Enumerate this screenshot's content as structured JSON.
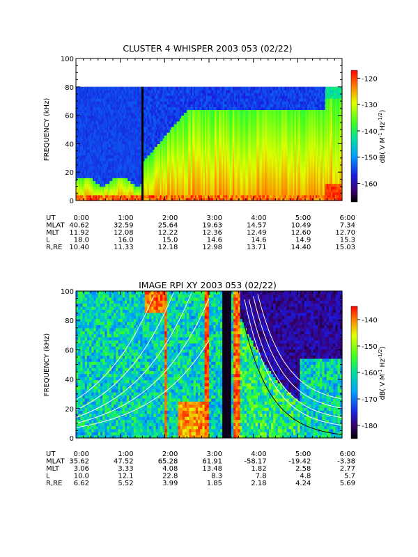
{
  "chart_data": [
    {
      "type": "heatmap",
      "title": "CLUSTER 4 WHISPER 2003 053 (02/22)",
      "ylabel": "FREQUENCY (kHz)",
      "ylim": [
        0,
        100
      ],
      "yticks": [
        "0",
        "20",
        "40",
        "60",
        "80",
        "100"
      ],
      "data_max_freq": 80,
      "colorbar": {
        "label_main": "dB( V M",
        "label_sup1": "-1",
        "label_mid": " Hz",
        "label_sup2": "-1/2",
        "label_end": ")",
        "ticks": [
          "-120",
          "-130",
          "-140",
          "-150",
          "-160"
        ],
        "range": [
          -167,
          -117
        ]
      },
      "xticks": [
        "0:00",
        "1:00",
        "2:00",
        "3:00",
        "4:00",
        "5:00",
        "6:00"
      ],
      "ephemeris": [
        {
          "label": "UT",
          "values": [
            "0:00",
            "1:00",
            "2:00",
            "3:00",
            "4:00",
            "5:00",
            "6:00"
          ]
        },
        {
          "label": "MLAT",
          "values": [
            "40.62",
            "32.59",
            "25.64",
            "19.63",
            "14.57",
            "10.49",
            "7.34"
          ]
        },
        {
          "label": "MLT",
          "values": [
            "11.92",
            "12.08",
            "12.22",
            "12.36",
            "12.49",
            "12.60",
            "12.70"
          ]
        },
        {
          "label": "L",
          "values": [
            "18.0",
            "16.0",
            "15.0",
            "14.6",
            "14.6",
            "14.9",
            "15.3"
          ]
        },
        {
          "label": "R,RE",
          "values": [
            "10.40",
            "11.33",
            "12.18",
            "12.98",
            "13.71",
            "14.40",
            "15.03"
          ]
        }
      ],
      "markers_ut_hours": [
        1.5
      ]
    },
    {
      "type": "heatmap",
      "title": "IMAGE RPI XY 2003 053 (02/22)",
      "ylabel": "FREQUENCY (kHz)",
      "ylim": [
        0,
        100
      ],
      "yticks": [
        "0",
        "20",
        "40",
        "60",
        "80",
        "100"
      ],
      "colorbar": {
        "label_main": "dB( V M",
        "label_sup1": "-1",
        "label_mid": " Hz",
        "label_sup2": "-1/2",
        "label_end": ")",
        "ticks": [
          "-140",
          "-150",
          "-160",
          "-170",
          "-180"
        ],
        "range": [
          -185,
          -135
        ]
      },
      "xticks": [
        "0:00",
        "1:00",
        "2:00",
        "3:00",
        "4:00",
        "5:00",
        "6:00"
      ],
      "ephemeris": [
        {
          "label": "UT",
          "values": [
            "0:00",
            "1:00",
            "2:00",
            "3:00",
            "4:00",
            "5:00",
            "6:00"
          ]
        },
        {
          "label": "MLAT",
          "values": [
            "35.62",
            "47.52",
            "65.28",
            "61.91",
            "-58.17",
            "-19.42",
            "-3.38"
          ]
        },
        {
          "label": "MLT",
          "values": [
            "3.06",
            "3.33",
            "4.08",
            "13.48",
            "1.82",
            "2.58",
            "2.77"
          ]
        },
        {
          "label": "L",
          "values": [
            "10.0",
            "12.1",
            "22.8",
            "8.3",
            "7.8",
            "4.8",
            "5.7"
          ]
        },
        {
          "label": "R,RE",
          "values": [
            "6.62",
            "5.52",
            "3.99",
            "1.85",
            "2.18",
            "4.24",
            "5.69"
          ]
        }
      ],
      "gap_ut_hours": [
        3.3,
        3.45
      ]
    }
  ]
}
